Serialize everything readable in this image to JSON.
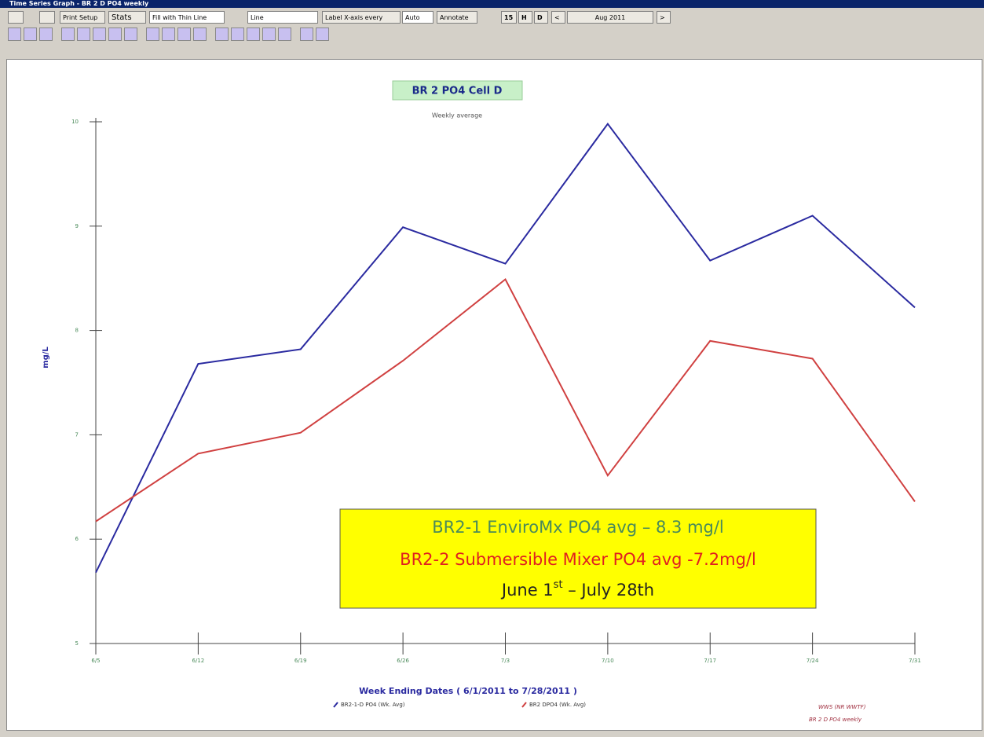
{
  "window": {
    "title": "Time Series Graph - BR 2 D PO4 weekly"
  },
  "toolbar": {
    "print_setup": "Print Setup",
    "stats": "Stats",
    "fill": "Fill with Thin Line",
    "style": "Line",
    "label_every": "Label X-axis every",
    "auto": "Auto",
    "annotate": "Annotate",
    "n15": "15",
    "h": "H",
    "d": "D",
    "prev": "<",
    "month": "Aug 2011",
    "next": ">"
  },
  "chart_data": {
    "type": "line",
    "title": "BR 2 PO4 Cell D",
    "subtitle": "Weekly average",
    "y_label": "mg/L",
    "x_label": "Week Ending Dates ( 6/1/2011 to 7/28/2011 )",
    "categories": [
      "6/5",
      "6/12",
      "6/19",
      "6/26",
      "7/3",
      "7/10",
      "7/17",
      "7/24",
      "7/31"
    ],
    "series": [
      {
        "name": "BR2-1-D PO4 (Wk. Avg)",
        "color": "#2a2aa0",
        "values": [
          5.68,
          7.68,
          7.82,
          8.99,
          8.64,
          9.98,
          8.67,
          9.1,
          8.22
        ]
      },
      {
        "name": "BR2 DPO4 (Wk. Avg)",
        "color": "#d04040",
        "values": [
          6.17,
          6.82,
          7.02,
          7.71,
          8.49,
          6.61,
          7.9,
          7.73,
          6.36
        ]
      }
    ],
    "ylim": [
      5,
      10
    ],
    "yticks": [
      5,
      6,
      7,
      8,
      9,
      10
    ],
    "annotation": {
      "line1": "BR2-1 EnviroMx PO4 avg – 8.3 mg/l",
      "line2": "BR2-2 Submersible Mixer PO4 avg -7.2mg/l",
      "date": [
        "June 1",
        "st",
        " – July 28th"
      ]
    },
    "footer": [
      "WWS (NR WWTF)",
      "BR 2 D PO4 weekly"
    ]
  }
}
